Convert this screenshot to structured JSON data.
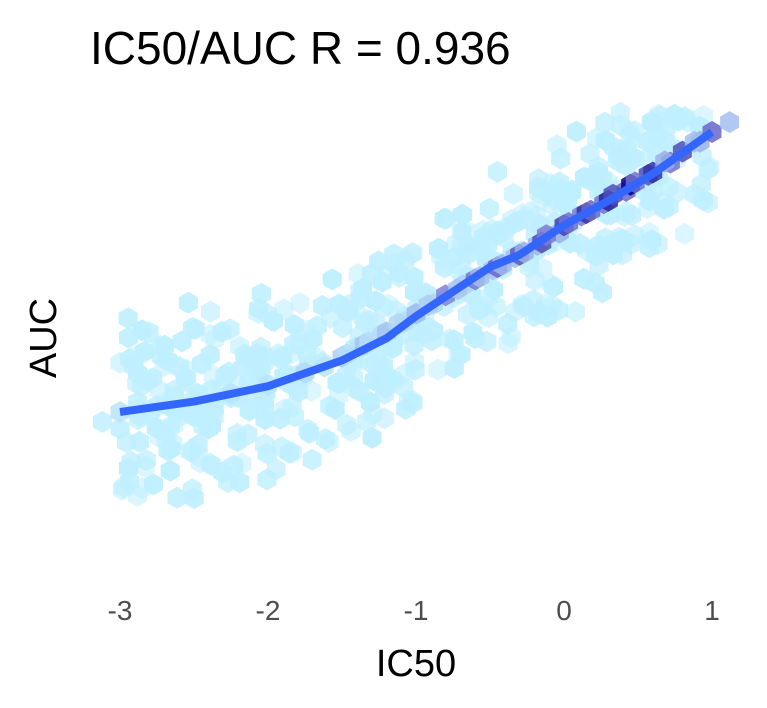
{
  "chart_data": {
    "type": "hexbin",
    "title": "IC50/AUC R = 0.936",
    "xlabel": "IC50",
    "ylabel": "AUC",
    "xlim": [
      -3.05,
      1.05
    ],
    "x_ticks": [
      {
        "value": -3,
        "label": "-3"
      },
      {
        "value": -2,
        "label": "-2"
      },
      {
        "value": -1,
        "label": "-1"
      },
      {
        "value": 0,
        "label": "0"
      },
      {
        "value": 1,
        "label": "1"
      }
    ],
    "grid": false,
    "legend": "none",
    "colors": {
      "hex_low": "#bfefff",
      "hex_mid": "#8080d8",
      "hex_high": "#00008b",
      "smooth_line": "#3366ff"
    },
    "smooth_curve": {
      "x": [
        -3.0,
        -2.5,
        -2.0,
        -1.5,
        -1.2,
        -1.0,
        -0.8,
        -0.6,
        -0.5,
        -0.3,
        0.0,
        0.3,
        0.6,
        1.0
      ],
      "y": [
        0.0,
        0.085,
        0.21,
        0.42,
        0.6,
        0.78,
        0.94,
        1.1,
        1.18,
        1.28,
        1.52,
        1.72,
        1.94,
        2.28
      ]
    },
    "density_bins": [
      {
        "x": -3.0,
        "y": 0.0,
        "level": 0.25
      },
      {
        "x": -2.75,
        "y": 0.05,
        "level": 0.2
      },
      {
        "x": -2.5,
        "y": 0.1,
        "level": 0.2
      },
      {
        "x": -2.25,
        "y": 0.15,
        "level": 0.25
      },
      {
        "x": -2.0,
        "y": 0.22,
        "level": 0.25
      },
      {
        "x": -1.75,
        "y": 0.32,
        "level": 0.3
      },
      {
        "x": -1.5,
        "y": 0.45,
        "level": 0.35
      },
      {
        "x": -1.35,
        "y": 0.55,
        "level": 0.4
      },
      {
        "x": -1.2,
        "y": 0.65,
        "level": 0.4
      },
      {
        "x": -1.0,
        "y": 0.8,
        "level": 0.45
      },
      {
        "x": -0.8,
        "y": 0.95,
        "level": 0.5
      },
      {
        "x": -0.6,
        "y": 1.08,
        "level": 0.55
      },
      {
        "x": -0.45,
        "y": 1.18,
        "level": 0.6
      },
      {
        "x": -0.3,
        "y": 1.28,
        "level": 0.65
      },
      {
        "x": -0.15,
        "y": 1.38,
        "level": 0.7
      },
      {
        "x": 0.0,
        "y": 1.52,
        "level": 0.75
      },
      {
        "x": 0.15,
        "y": 1.62,
        "level": 0.8
      },
      {
        "x": 0.3,
        "y": 1.72,
        "level": 0.85
      },
      {
        "x": 0.45,
        "y": 1.85,
        "level": 1.0
      },
      {
        "x": 0.6,
        "y": 1.95,
        "level": 0.8
      },
      {
        "x": 0.8,
        "y": 2.12,
        "level": 0.7
      },
      {
        "x": 1.0,
        "y": 2.28,
        "level": 0.6
      }
    ]
  }
}
